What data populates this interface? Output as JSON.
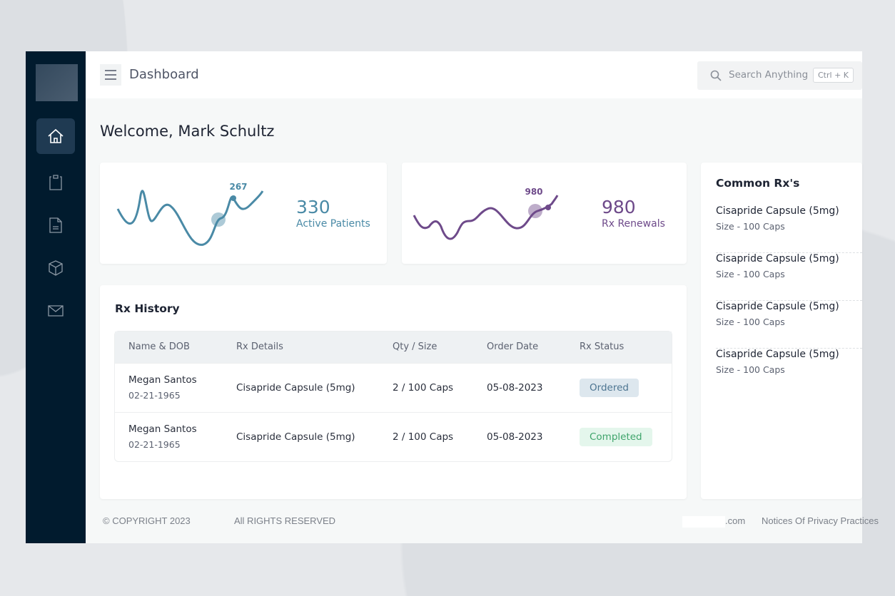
{
  "header": {
    "title": "Dashboard",
    "search_placeholder": "Search Anything",
    "shortcut": "Ctrl + K"
  },
  "welcome": "Welcome, Mark Schultz",
  "stats": [
    {
      "value": "330",
      "label": "Active Patients",
      "point_label": "267",
      "color": "#4a8aa6"
    },
    {
      "value": "980",
      "label": "Rx Renewals",
      "point_label": "980",
      "color": "#6e4a8a"
    }
  ],
  "common": {
    "title": "Common Rx's",
    "items": [
      {
        "name": "Cisapride Capsule (5mg)",
        "size": "Size - 100 Caps"
      },
      {
        "name": "Cisapride Capsule (5mg)",
        "size": "Size - 100 Caps"
      },
      {
        "name": "Cisapride Capsule (5mg)",
        "size": "Size - 100 Caps"
      },
      {
        "name": "Cisapride Capsule (5mg)",
        "size": "Size - 100 Caps"
      }
    ]
  },
  "history": {
    "title": "Rx History",
    "columns": [
      "Name & DOB",
      "Rx Details",
      "Qty / Size",
      "Order Date",
      "Rx Status"
    ],
    "rows": [
      {
        "name": "Megan Santos",
        "dob": "02-21-1965",
        "details": "Cisapride Capsule (5mg)",
        "qty": "2 / 100 Caps",
        "date": "05-08-2023",
        "status": "Ordered"
      },
      {
        "name": "Megan Santos",
        "dob": "02-21-1965",
        "details": "Cisapride Capsule (5mg)",
        "qty": "2 / 100 Caps",
        "date": "05-08-2023",
        "status": "Completed"
      }
    ]
  },
  "footer": {
    "copyright": "© COPYRIGHT 2023",
    "rights": "All RIGHTS RESERVED",
    "domain": ".com",
    "privacy": "Notices Of Privacy Practices"
  }
}
